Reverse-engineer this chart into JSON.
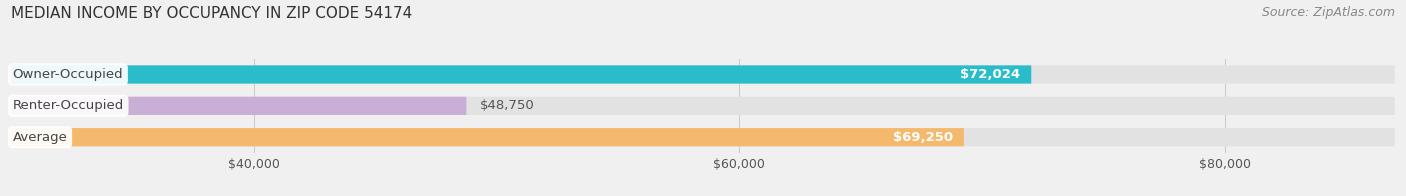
{
  "title": "MEDIAN INCOME BY OCCUPANCY IN ZIP CODE 54174",
  "source": "Source: ZipAtlas.com",
  "categories": [
    "Owner-Occupied",
    "Renter-Occupied",
    "Average"
  ],
  "values": [
    72024,
    48750,
    69250
  ],
  "bar_colors": [
    "#2bbccc",
    "#c9aed6",
    "#f5b96e"
  ],
  "bar_labels": [
    "$72,024",
    "$48,750",
    "$69,250"
  ],
  "xlim": [
    30000,
    87000
  ],
  "xmin": 30000,
  "xmax": 87000,
  "xticks": [
    40000,
    60000,
    80000
  ],
  "xtick_labels": [
    "$40,000",
    "$60,000",
    "$80,000"
  ],
  "background_color": "#f0f0f0",
  "bar_background_color": "#e2e2e2",
  "title_fontsize": 11,
  "source_fontsize": 9,
  "label_fontsize": 9.5,
  "tick_fontsize": 9,
  "bar_height": 0.58,
  "label_white_threshold": 0.5
}
